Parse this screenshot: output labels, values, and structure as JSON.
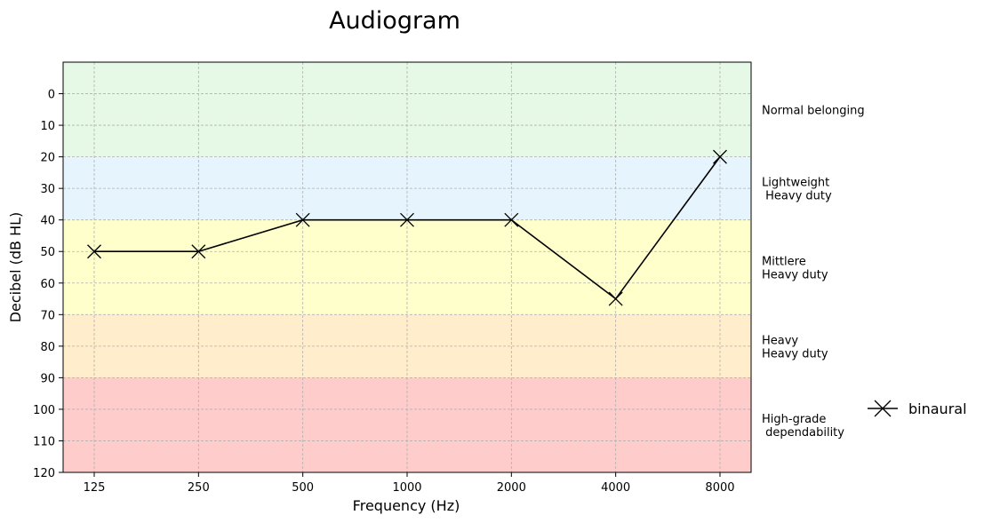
{
  "chart_data": {
    "type": "line",
    "title": "Audiogram",
    "xlabel": "Frequency (Hz)",
    "ylabel": "Decibel (dB HL)",
    "categories": [
      "125",
      "250",
      "500",
      "1000",
      "2000",
      "4000",
      "8000"
    ],
    "ylim": [
      120,
      -10
    ],
    "y_inverted": true,
    "yticks": [
      0,
      10,
      20,
      30,
      40,
      50,
      60,
      70,
      80,
      90,
      100,
      110,
      120
    ],
    "grid": true,
    "legend_position": "right",
    "series": [
      {
        "name": "binaural",
        "marker": "x",
        "color": "#000000",
        "values": [
          50,
          50,
          40,
          40,
          40,
          65,
          20
        ]
      }
    ],
    "bands": [
      {
        "from": -10,
        "to": 20,
        "color": "#e6f9e6",
        "label_lines": [
          "Normal belonging"
        ]
      },
      {
        "from": 20,
        "to": 40,
        "color": "#e6f4fd",
        "label_lines": [
          "Lightweight",
          " Heavy duty"
        ]
      },
      {
        "from": 40,
        "to": 70,
        "color": "#ffffcc",
        "label_lines": [
          "Mittlere",
          "Heavy duty"
        ]
      },
      {
        "from": 70,
        "to": 90,
        "color": "#ffedcc",
        "label_lines": [
          "Heavy",
          "Heavy duty"
        ]
      },
      {
        "from": 90,
        "to": 120,
        "color": "#ffcccc",
        "label_lines": [
          "High-grade",
          " dependability"
        ]
      }
    ]
  }
}
